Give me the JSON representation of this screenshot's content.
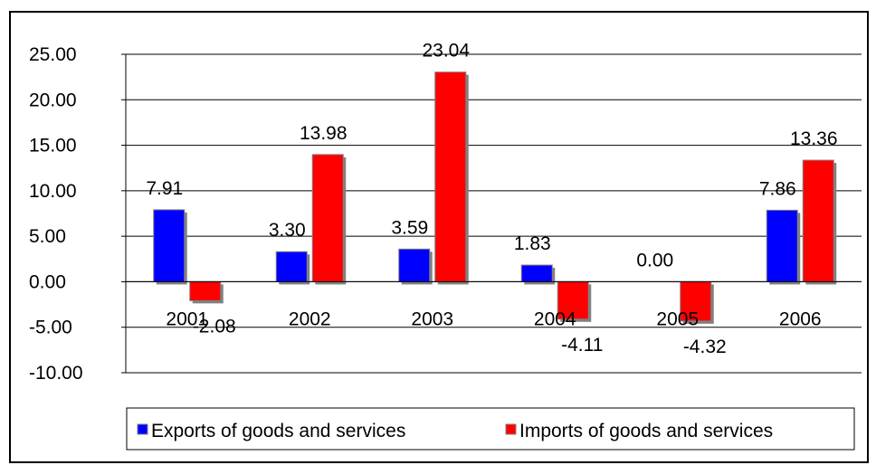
{
  "chart_data": {
    "type": "bar",
    "categories": [
      "2001",
      "2002",
      "2003",
      "2004",
      "2005",
      "2006"
    ],
    "series": [
      {
        "name": "Exports of goods and services",
        "values": [
          7.91,
          3.3,
          3.59,
          1.83,
          0.0,
          7.86
        ],
        "labels": [
          "7.91",
          "3.30",
          "3.59",
          "1.83",
          "0.00",
          "7.86"
        ],
        "color": "#0000ff"
      },
      {
        "name": "Imports of goods and services",
        "values": [
          -2.08,
          13.98,
          23.04,
          -4.11,
          -4.32,
          13.36
        ],
        "labels": [
          "-2.08",
          "13.98",
          "23.04",
          "-4.11",
          "-4.32",
          "13.36"
        ],
        "color": "#ff0000"
      }
    ],
    "yticks": [
      "25.00",
      "20.00",
      "15.00",
      "10.00",
      "5.00",
      "0.00",
      "-5.00",
      "-10.00"
    ],
    "ylim": [
      -10,
      25
    ],
    "grid": true,
    "legend_position": "bottom"
  }
}
